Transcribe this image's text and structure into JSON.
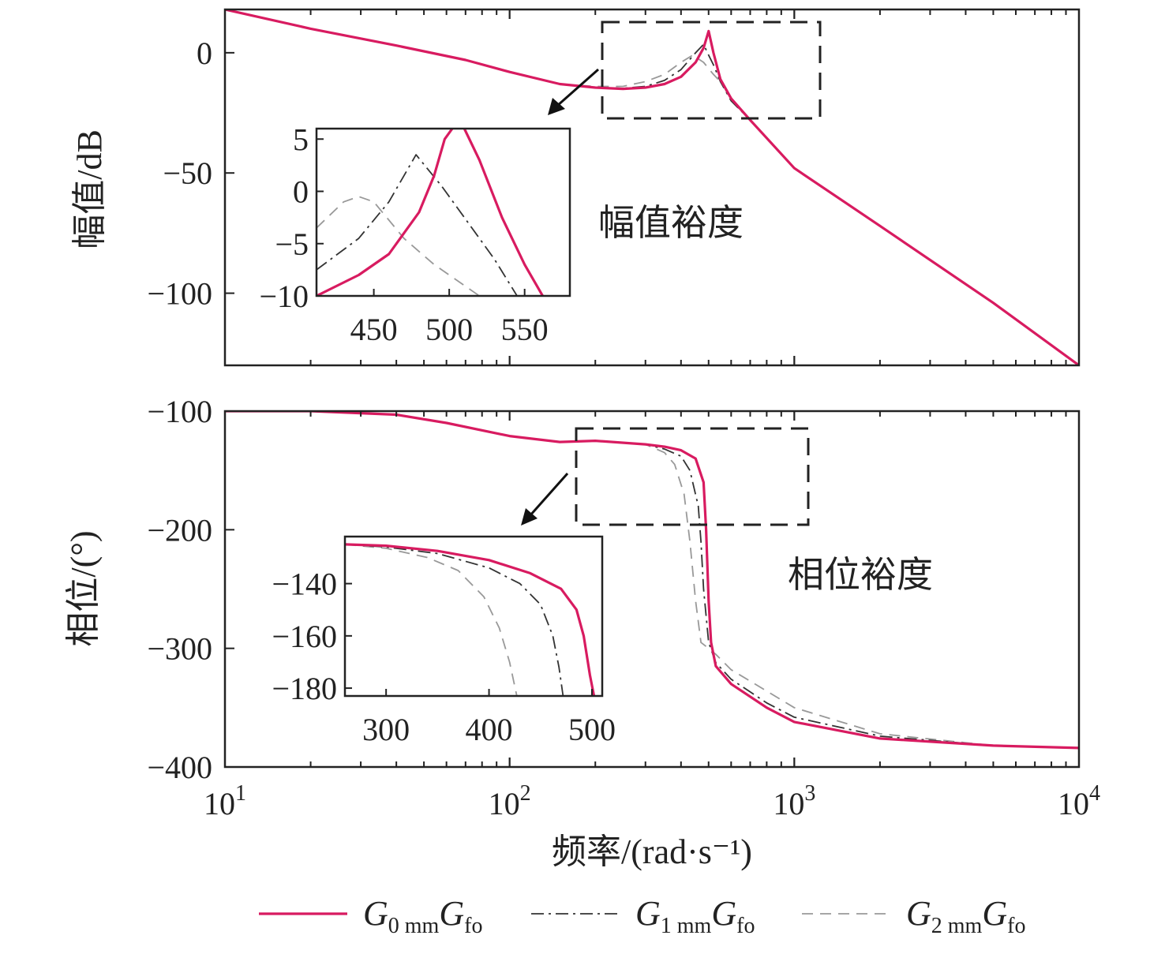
{
  "chart_data": [
    {
      "type": "line",
      "panel": "magnitude",
      "ylabel": "幅值/dB",
      "xscale": "log",
      "xlim": [
        10,
        10000
      ],
      "ylim": [
        -130,
        18
      ],
      "yticks": [
        0,
        -50,
        -100
      ],
      "ytick_labels": [
        "0",
        "−50",
        "−100"
      ],
      "annotation": "幅值裕度",
      "series": [
        {
          "name": "G0mmGfo",
          "color": "#d81b60",
          "x": [
            10,
            20,
            40,
            70,
            100,
            150,
            200,
            250,
            300,
            350,
            400,
            450,
            480,
            500,
            520,
            550,
            600,
            700,
            1000,
            2000,
            5000,
            10000
          ],
          "y": [
            18,
            10,
            3,
            -3,
            -8,
            -13,
            -14.5,
            -15,
            -14.5,
            -13,
            -10,
            -4,
            2,
            9,
            0,
            -11,
            -19,
            -28,
            -48,
            -72,
            -104,
            -130
          ]
        },
        {
          "name": "G1mmGfo",
          "color": "#333333",
          "x": [
            10,
            20,
            40,
            70,
            100,
            150,
            200,
            250,
            300,
            350,
            400,
            450,
            480,
            500,
            520,
            550,
            600,
            700,
            1000,
            2000,
            5000,
            10000
          ],
          "y": [
            18,
            10,
            3,
            -3,
            -8,
            -13,
            -14.5,
            -14.8,
            -14,
            -11.5,
            -7,
            0,
            3.5,
            -1,
            -5,
            -12,
            -20,
            -28,
            -48,
            -72,
            -104,
            -130
          ]
        },
        {
          "name": "G2mmGfo",
          "color": "#999999",
          "x": [
            10,
            20,
            40,
            70,
            100,
            150,
            200,
            250,
            300,
            350,
            400,
            440,
            480,
            520,
            560,
            600,
            700,
            1000,
            2000,
            5000,
            10000
          ],
          "y": [
            18,
            10,
            3,
            -3,
            -8,
            -13,
            -14,
            -14,
            -12,
            -9,
            -4,
            -1,
            -4,
            -9,
            -13,
            -20,
            -28,
            -48,
            -72,
            -104,
            -130
          ]
        }
      ],
      "inset": {
        "xlim": [
          412,
          580
        ],
        "ylim": [
          -10,
          6
        ],
        "xticks": [
          450,
          500,
          550
        ],
        "xtick_labels": [
          "450",
          "500",
          "550"
        ],
        "yticks": [
          5,
          0,
          -5,
          -10
        ],
        "ytick_labels": [
          "5",
          "0",
          "−5",
          "−10"
        ],
        "series": [
          {
            "name": "G0mmGfo",
            "x": [
              412,
              440,
              460,
              480,
              490,
              497,
              502
            ],
            "y": [
              -10,
              -8,
              -6,
              -2,
              1.5,
              5,
              6
            ]
          },
          {
            "name": "G0mmGfo_right",
            "x": [
              510,
              520,
              535,
              550,
              562
            ],
            "y": [
              6,
              3,
              -2.5,
              -7,
              -10
            ]
          },
          {
            "name": "G1mmGfo",
            "x": [
              412,
              440,
              460,
              478,
              495,
              510,
              530,
              545
            ],
            "y": [
              -7.5,
              -4.5,
              -1,
              3.5,
              0.5,
              -2.5,
              -6.5,
              -10
            ]
          },
          {
            "name": "G2mmGfo",
            "x": [
              412,
              430,
              440,
              450,
              470,
              490,
              505,
              520
            ],
            "y": [
              -3.5,
              -1,
              -0.5,
              -1,
              -4.5,
              -7,
              -8.5,
              -10
            ]
          }
        ]
      }
    },
    {
      "type": "line",
      "panel": "phase",
      "ylabel": "相位/(°)",
      "xlabel": "频率/(rad·s⁻¹)",
      "xscale": "log",
      "xlim": [
        10,
        10000
      ],
      "ylim": [
        -400,
        -100
      ],
      "yticks": [
        -100,
        -200,
        -300,
        -400
      ],
      "ytick_labels": [
        "−100",
        "−200",
        "−300",
        "−400"
      ],
      "xticks": [
        10,
        100,
        1000,
        10000
      ],
      "xtick_base": "10",
      "xtick_exponents": [
        "1",
        "2",
        "3",
        "4"
      ],
      "annotation": "相位裕度",
      "series": [
        {
          "name": "G0mmGfo",
          "x": [
            10,
            20,
            40,
            60,
            100,
            150,
            200,
            300,
            350,
            400,
            450,
            480,
            490,
            500,
            510,
            530,
            600,
            800,
            1000,
            2000,
            5000,
            10000
          ],
          "y": [
            -100,
            -100,
            -103,
            -110,
            -121,
            -126,
            -125,
            -128,
            -130,
            -133,
            -140,
            -160,
            -200,
            -260,
            -295,
            -315,
            -330,
            -350,
            -362,
            -376,
            -382,
            -384
          ]
        },
        {
          "name": "G1mmGfo",
          "x": [
            10,
            20,
            40,
            60,
            100,
            150,
            200,
            300,
            350,
            400,
            430,
            460,
            470,
            480,
            500,
            530,
            600,
            800,
            1000,
            2000,
            5000,
            10000
          ],
          "y": [
            -100,
            -100,
            -103,
            -110,
            -121,
            -126,
            -125,
            -128,
            -132,
            -138,
            -150,
            -180,
            -210,
            -250,
            -295,
            -312,
            -326,
            -346,
            -358,
            -374,
            -382,
            -384
          ]
        },
        {
          "name": "G2mmGfo",
          "x": [
            10,
            20,
            40,
            60,
            100,
            150,
            200,
            300,
            350,
            380,
            410,
            430,
            450,
            470,
            500,
            530,
            600,
            800,
            1000,
            2000,
            5000,
            10000
          ],
          "y": [
            -100,
            -100,
            -103,
            -110,
            -121,
            -126,
            -125,
            -128,
            -135,
            -145,
            -170,
            -210,
            -260,
            -295,
            -300,
            -305,
            -318,
            -336,
            -350,
            -372,
            -382,
            -384
          ]
        }
      ],
      "inset": {
        "xlim": [
          260,
          510
        ],
        "ylim": [
          -183,
          -122
        ],
        "xticks": [
          300,
          400,
          500
        ],
        "xtick_labels": [
          "300",
          "400",
          "500"
        ],
        "yticks": [
          -140,
          -160,
          -180
        ],
        "ytick_labels": [
          "−140",
          "−160",
          "−180"
        ],
        "series": [
          {
            "name": "G0mmGfo",
            "x": [
              260,
              300,
              350,
              400,
              440,
              470,
              485,
              492,
              498,
              502
            ],
            "y": [
              -125,
              -125.5,
              -127.5,
              -131,
              -136,
              -142,
              -150,
              -160,
              -175,
              -183
            ]
          },
          {
            "name": "G1mmGfo",
            "x": [
              260,
              300,
              350,
              400,
              430,
              450,
              462,
              468,
              472
            ],
            "y": [
              -125,
              -126,
              -128.5,
              -134,
              -140,
              -148,
              -160,
              -172,
              -183
            ]
          },
          {
            "name": "G2mmGfo",
            "x": [
              260,
              300,
              340,
              370,
              395,
              410,
              420,
              427
            ],
            "y": [
              -125,
              -126.5,
              -130,
              -135,
              -145,
              -157,
              -170,
              -183
            ]
          }
        ]
      }
    }
  ],
  "legend": {
    "placement": "bottom",
    "entries": [
      {
        "base": "G",
        "sub": "0 mm",
        "base2": "G",
        "sub2": "fo",
        "color": "#d81b60",
        "style": "solid"
      },
      {
        "base": "G",
        "sub": "1 mm",
        "base2": "G",
        "sub2": "fo",
        "color": "#333333",
        "style": "dashdot"
      },
      {
        "base": "G",
        "sub": "2 mm",
        "base2": "G",
        "sub2": "fo",
        "color": "#999999",
        "style": "dashed"
      }
    ]
  }
}
